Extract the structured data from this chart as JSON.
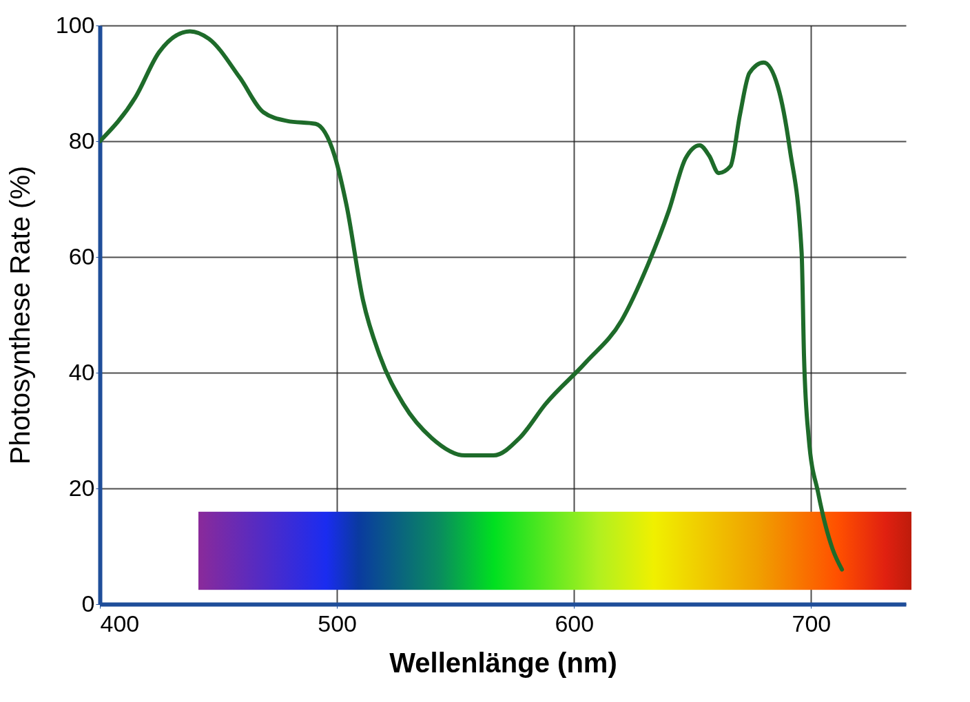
{
  "chart_data": {
    "type": "line",
    "xlabel": "Wellenlänge  (nm)",
    "ylabel": "Photosynthese Rate (%)",
    "xlim": [
      400,
      740
    ],
    "ylim": [
      0,
      100
    ],
    "xticks": [
      400,
      500,
      600,
      700
    ],
    "yticks": [
      0,
      20,
      40,
      60,
      80,
      100
    ],
    "grid": true,
    "series": [
      {
        "color": "#1e6b2a",
        "x": [
          400,
          415,
          425,
          438,
          446,
          459,
          469,
          479,
          491,
          499,
          504,
          511,
          518,
          528,
          540,
          554,
          566,
          577,
          588,
          605,
          620,
          631,
          640,
          647,
          653,
          657,
          661,
          666,
          670,
          674,
          680,
          686,
          691,
          696,
          697,
          699,
          703,
          709,
          713
        ],
        "values": [
          80,
          87.6,
          95.4,
          99,
          97.7,
          91,
          85,
          83.5,
          83,
          77.5,
          69,
          52.5,
          43,
          34.6,
          28.7,
          25.7,
          25.7,
          28.7,
          34.6,
          41.8,
          49,
          58.5,
          68,
          77,
          79.3,
          77.5,
          74.5,
          75.7,
          84.6,
          91.8,
          93.6,
          89.4,
          78.7,
          60.8,
          43,
          28.7,
          19.2,
          9.6,
          6
        ]
      }
    ]
  }
}
